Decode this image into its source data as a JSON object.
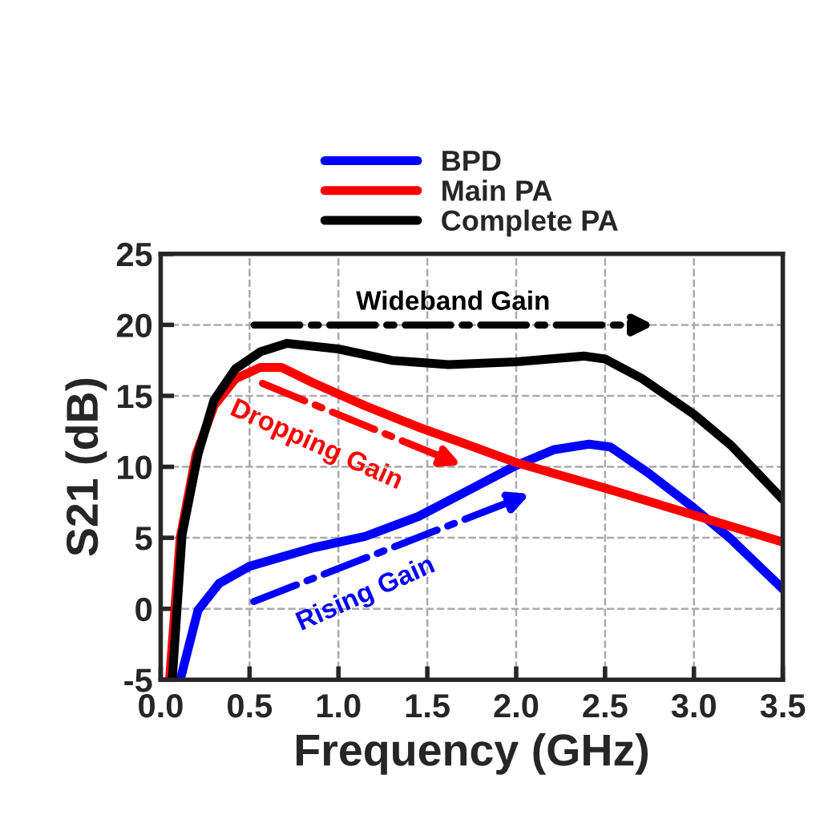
{
  "chart_data": {
    "type": "line",
    "xlabel": "Frequency (GHz)",
    "ylabel": "S21 (dB)",
    "xlim": [
      0,
      3.5
    ],
    "ylim": [
      -5,
      25
    ],
    "xticks": [
      {
        "value": 0,
        "label": "0.0"
      },
      {
        "value": 0.5,
        "label": "0.5"
      },
      {
        "value": 1,
        "label": "1.0"
      },
      {
        "value": 1.5,
        "label": "1.5"
      },
      {
        "value": 2,
        "label": "2.0"
      },
      {
        "value": 2.5,
        "label": "2.5"
      },
      {
        "value": 3,
        "label": "3.0"
      },
      {
        "value": 3.5,
        "label": "3.5"
      }
    ],
    "yticks": [
      -5,
      0,
      5,
      10,
      15,
      20,
      25
    ],
    "grid": true,
    "legend": "top",
    "line_style": "solid",
    "marker": "none",
    "series": [
      {
        "name": "BPD",
        "color": "#0000ff",
        "x": [
          0.11,
          0.21,
          0.33,
          0.5,
          0.86,
          1.15,
          1.45,
          1.74,
          2.0,
          2.21,
          2.41,
          2.53,
          2.74,
          3.0,
          3.21,
          3.5
        ],
        "values": [
          -5,
          -0.1,
          1.8,
          3.0,
          4.3,
          5.1,
          6.5,
          8.4,
          10.1,
          11.2,
          11.6,
          11.4,
          9.6,
          7.1,
          4.9,
          1.4
        ]
      },
      {
        "name": "Main PA",
        "color": "#ff0000",
        "x": [
          0.05,
          0.11,
          0.2,
          0.3,
          0.42,
          0.56,
          0.68,
          0.86,
          1.15,
          1.45,
          1.74,
          2.0,
          2.5,
          3.0,
          3.5
        ],
        "values": [
          -5,
          5,
          10.9,
          14.3,
          16.2,
          17.0,
          17.0,
          15.9,
          14.3,
          12.8,
          11.5,
          10.3,
          8.5,
          6.6,
          4.7
        ]
      },
      {
        "name": "Complete PA",
        "color": "#000000",
        "x": [
          0.065,
          0.12,
          0.21,
          0.3,
          0.42,
          0.56,
          0.71,
          1.0,
          1.3,
          1.62,
          2.0,
          2.38,
          2.5,
          2.71,
          3.0,
          3.21,
          3.5
        ],
        "values": [
          -5,
          5.2,
          10.9,
          14.7,
          16.9,
          18.1,
          18.7,
          18.3,
          17.5,
          17.2,
          17.4,
          17.8,
          17.6,
          16.2,
          13.7,
          11.5,
          7.7
        ]
      }
    ],
    "annotations": [
      "Wideband Gain",
      "Dropping Gain",
      "Rising Gain"
    ]
  }
}
